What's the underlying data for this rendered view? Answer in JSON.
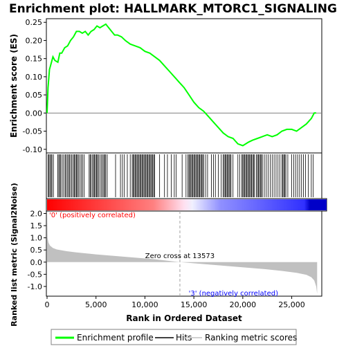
{
  "chart_data": [
    {
      "type": "line",
      "title": "Enrichment plot: HALLMARK_MTORC1_SIGNALING",
      "ylabel": "Enrichment score (ES)",
      "xlim": [
        0,
        28000
      ],
      "ylim": [
        -0.11,
        0.26
      ],
      "yticks": [
        -0.1,
        -0.05,
        0.0,
        0.05,
        0.1,
        0.15,
        0.2,
        0.25
      ],
      "ytick_labels": [
        "-0.10",
        "-0.05",
        "0.00",
        "0.05",
        "0.10",
        "0.15",
        "0.20",
        "0.25"
      ],
      "series": [
        {
          "name": "Enrichment profile",
          "color": "#00ff00",
          "x": [
            0,
            100,
            250,
            450,
            600,
            800,
            1100,
            1300,
            1500,
            1800,
            2100,
            2400,
            2700,
            3000,
            3300,
            3600,
            3900,
            4200,
            4500,
            4800,
            5100,
            5400,
            5700,
            6000,
            6300,
            6600,
            6900,
            7200,
            7600,
            8000,
            8500,
            9000,
            9500,
            10000,
            10500,
            11000,
            11500,
            12000,
            12500,
            13000,
            13500,
            14000,
            14500,
            15000,
            15500,
            16000,
            16500,
            17000,
            17500,
            18000,
            18500,
            19000,
            19500,
            20000,
            20300,
            20600,
            21000,
            21500,
            22000,
            22500,
            23000,
            23500,
            24000,
            24500,
            25000,
            25500,
            26000,
            26500,
            27000,
            27300,
            27500
          ],
          "y": [
            0.0,
            0.07,
            0.12,
            0.14,
            0.155,
            0.145,
            0.14,
            0.165,
            0.165,
            0.18,
            0.185,
            0.2,
            0.21,
            0.225,
            0.225,
            0.22,
            0.225,
            0.215,
            0.225,
            0.23,
            0.24,
            0.235,
            0.24,
            0.245,
            0.235,
            0.225,
            0.215,
            0.215,
            0.21,
            0.2,
            0.19,
            0.185,
            0.18,
            0.17,
            0.165,
            0.155,
            0.145,
            0.13,
            0.115,
            0.1,
            0.085,
            0.07,
            0.05,
            0.03,
            0.015,
            0.005,
            -0.01,
            -0.025,
            -0.04,
            -0.055,
            -0.065,
            -0.07,
            -0.085,
            -0.09,
            -0.085,
            -0.08,
            -0.075,
            -0.07,
            -0.065,
            -0.06,
            -0.065,
            -0.06,
            -0.05,
            -0.045,
            -0.045,
            -0.05,
            -0.04,
            -0.03,
            -0.015,
            0.0,
            0.0
          ]
        }
      ]
    },
    {
      "type": "line",
      "xlabel": "Rank in Ordered Dataset",
      "ylabel": "Ranked list metric (Signal2Noise)",
      "xlim": [
        0,
        28000
      ],
      "ylim": [
        -1.4,
        2.1
      ],
      "xticks": [
        0,
        5000,
        10000,
        15000,
        20000,
        25000
      ],
      "xtick_labels": [
        "0",
        "5,000",
        "10,000",
        "15,000",
        "20,000",
        "25,000"
      ],
      "yticks": [
        -1.0,
        -0.5,
        0.0,
        0.5,
        1.0,
        1.5,
        2.0
      ],
      "ytick_labels": [
        "-1.0",
        "-0.5",
        "0.0",
        "0.5",
        "1.0",
        "1.5",
        "2.0"
      ],
      "zero_cross": 13573,
      "series": [
        {
          "name": "Ranking metric scores",
          "color": "#c0c0c0",
          "x": [
            0,
            50,
            150,
            300,
            600,
            1000,
            2000,
            3000,
            5000,
            8000,
            11000,
            13573,
            16000,
            19000,
            22000,
            24000,
            25500,
            26500,
            27000,
            27300,
            27500,
            27600
          ],
          "y": [
            2.05,
            1.0,
            0.8,
            0.68,
            0.58,
            0.52,
            0.45,
            0.4,
            0.32,
            0.22,
            0.12,
            0.0,
            -0.08,
            -0.18,
            -0.28,
            -0.36,
            -0.44,
            -0.52,
            -0.62,
            -0.75,
            -1.0,
            -1.3
          ]
        }
      ]
    }
  ],
  "annotations": {
    "positive": "'0' (positively correlated)",
    "negative": "'3' (negatively correlated)",
    "zero_cross": "Zero cross at 13573"
  },
  "legend": {
    "items": [
      {
        "label": "Enrichment profile",
        "color": "#00ff00"
      },
      {
        "label": "Hits",
        "color": "#000000"
      },
      {
        "label": "Ranking metric scores",
        "color": "#c0c0c0"
      }
    ]
  },
  "hits": [
    100,
    200,
    300,
    420,
    500,
    650,
    1100,
    1200,
    1300,
    1400,
    1550,
    1700,
    1850,
    1950,
    2100,
    2200,
    2300,
    2450,
    2550,
    2700,
    2800,
    2900,
    3000,
    3100,
    3200,
    3350,
    3500,
    3650,
    3800,
    4300,
    4400,
    4500,
    4650,
    4750,
    4850,
    4950,
    5050,
    5150,
    5250,
    5400,
    5550,
    5700,
    5800,
    5900,
    6000,
    6150,
    7000,
    7500,
    7700,
    7900,
    8200,
    8500,
    8700,
    8800,
    8900,
    9000,
    9100,
    9200,
    9300,
    9400,
    9500,
    9600,
    9700,
    9800,
    9900,
    10000,
    10100,
    10200,
    10300,
    10400,
    10500,
    10600,
    10700,
    10800,
    10900,
    11000,
    11500,
    12000,
    12300,
    12700,
    13000,
    13200,
    13800,
    14200,
    14400,
    14500,
    14600,
    14700,
    14800,
    14900,
    15000,
    15100,
    15200,
    15300,
    15400,
    15500,
    15600,
    15700,
    15800,
    15900,
    16000,
    16200,
    16400,
    16800,
    17000,
    17200,
    17500,
    17800,
    18000,
    18100,
    18200,
    18300,
    18400,
    18500,
    18600,
    18700,
    18800,
    19000,
    19500,
    19700,
    19900,
    20000,
    20100,
    20200,
    20300,
    20400,
    20500,
    20600,
    20700,
    20800,
    20900,
    21000,
    21100,
    21200,
    21400,
    21500,
    21600,
    21700,
    21800,
    21900,
    22000,
    22200,
    22400,
    22600,
    22800,
    23000,
    23200,
    23400,
    23600,
    23800,
    24000,
    24100,
    24200,
    24300,
    24400,
    24600,
    25000,
    25200,
    25400,
    25600,
    25800,
    26000,
    26200,
    26400,
    26700,
    27000,
    27200
  ]
}
